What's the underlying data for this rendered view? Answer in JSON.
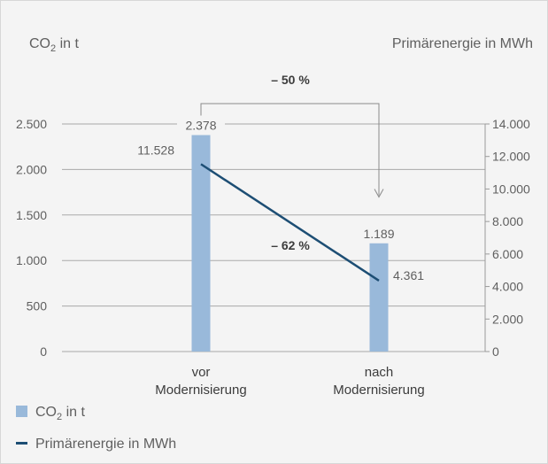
{
  "chart_data": {
    "type": "bar",
    "title": "",
    "categories": [
      [
        "vor",
        "Modernisierung"
      ],
      [
        "nach",
        "Modernisierung"
      ]
    ],
    "left_axis": {
      "label_prefix": "CO",
      "label_sub": "2",
      "label_suffix": " in t",
      "ticks": [
        "0",
        "500",
        "1.000",
        "1.500",
        "2.000",
        "2.500"
      ],
      "tick_values": [
        0,
        500,
        1000,
        1500,
        2000,
        2500
      ],
      "ylim": [
        0,
        2500
      ]
    },
    "right_axis": {
      "label": "Primärenergie in MWh",
      "ticks": [
        "0",
        "2.000",
        "4.000",
        "6.000",
        "8.000",
        "10.000",
        "12.000",
        "14.000"
      ],
      "tick_values": [
        0,
        2000,
        4000,
        6000,
        8000,
        10000,
        12000,
        14000
      ],
      "ylim": [
        0,
        14000
      ]
    },
    "series": [
      {
        "name_prefix": "CO",
        "name_sub": "2",
        "name_suffix": " in t",
        "type": "bar",
        "axis": "left",
        "values": [
          2378,
          1189
        ],
        "labels": [
          "2.378",
          "1.189"
        ],
        "color": "#99b9da"
      },
      {
        "name": "Primärenergie in MWh",
        "type": "line",
        "axis": "right",
        "values": [
          11528,
          4361
        ],
        "labels": [
          "11.528",
          "4.361"
        ],
        "color": "#1d4e74"
      }
    ],
    "annotations": {
      "co2_change": "– 50 %",
      "energy_change": "– 62 %"
    },
    "grid": true,
    "legend": "bottom-left"
  }
}
